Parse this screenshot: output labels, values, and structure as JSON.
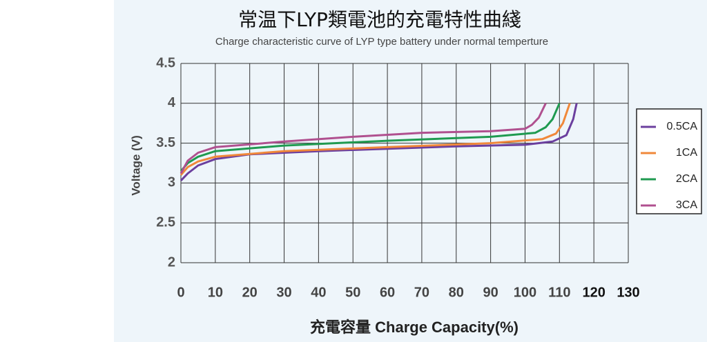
{
  "chart_data": {
    "type": "line",
    "title": "常温下LYP類電池的充電特性曲綫",
    "subtitle": "Charge characteristic curve of LYP type battery under normal temperture",
    "xlabel": "充電容量 Charge Capacity(%)",
    "ylabel": "Voltage (V)",
    "xlim": [
      0,
      130
    ],
    "xticks": [
      0,
      10,
      20,
      30,
      40,
      50,
      60,
      70,
      80,
      90,
      100,
      110,
      120,
      130
    ],
    "ylim": [
      2,
      4.5
    ],
    "yticks": [
      2,
      2.5,
      3,
      3.5,
      4,
      4.5
    ],
    "grid": true,
    "legend": "right",
    "series": [
      {
        "name": "0.5CA",
        "color": "#6b3f9e",
        "x": [
          0,
          2,
          5,
          10,
          20,
          40,
          60,
          80,
          100,
          108,
          112,
          114,
          115
        ],
        "values": [
          3.03,
          3.12,
          3.22,
          3.3,
          3.36,
          3.4,
          3.43,
          3.46,
          3.48,
          3.52,
          3.6,
          3.8,
          4.0
        ]
      },
      {
        "name": "1CA",
        "color": "#f0883a",
        "x": [
          0,
          2,
          5,
          10,
          30,
          60,
          90,
          105,
          109,
          111,
          113
        ],
        "values": [
          3.1,
          3.2,
          3.27,
          3.33,
          3.4,
          3.45,
          3.5,
          3.55,
          3.62,
          3.75,
          4.0
        ]
      },
      {
        "name": "2CA",
        "color": "#1f9a50",
        "x": [
          0,
          2,
          5,
          10,
          30,
          60,
          90,
          103,
          106,
          108,
          110
        ],
        "values": [
          3.15,
          3.25,
          3.33,
          3.4,
          3.47,
          3.53,
          3.58,
          3.63,
          3.7,
          3.8,
          4.0
        ]
      },
      {
        "name": "3CA",
        "color": "#b0508f",
        "x": [
          0,
          2,
          5,
          10,
          30,
          50,
          70,
          90,
          100,
          102,
          104,
          106
        ],
        "values": [
          3.12,
          3.28,
          3.38,
          3.45,
          3.52,
          3.58,
          3.63,
          3.65,
          3.68,
          3.73,
          3.82,
          4.0
        ]
      }
    ]
  }
}
